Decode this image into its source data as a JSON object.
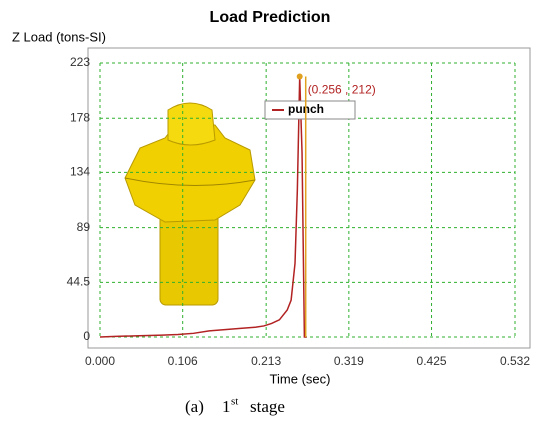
{
  "chart_data": {
    "type": "line",
    "title": "Load Prediction",
    "y_label": "Z Load (tons-SI)",
    "x_label": "Time (sec)",
    "caption": {
      "label": "(a)",
      "number": "1",
      "suffix": "st",
      "text": "stage"
    },
    "x": [
      0,
      0.02,
      0.05,
      0.08,
      0.1,
      0.12,
      0.14,
      0.16,
      0.18,
      0.2,
      0.21,
      0.22,
      0.23,
      0.24,
      0.245,
      0.25,
      0.253,
      0.256,
      0.259,
      0.262,
      0.265
    ],
    "series": [
      {
        "name": "punch",
        "color": "#b22222",
        "values": [
          0,
          0.5,
          1,
          1.5,
          2,
          3,
          5,
          6,
          7,
          8,
          9,
          11,
          14,
          22,
          30,
          60,
          120,
          212,
          150,
          0,
          0
        ]
      }
    ],
    "annotation": {
      "text": "(0.256 , 212)",
      "x": 0.256,
      "y": 212,
      "color": "#e0a020"
    },
    "xlim": [
      0,
      0.532
    ],
    "ylim": [
      0,
      223
    ],
    "xticks": [
      {
        "value": 0,
        "label": "0.000"
      },
      0.106,
      0.213,
      0.319,
      0.425,
      0.532
    ],
    "yticks": [
      0,
      44.5,
      89,
      134,
      178,
      223
    ],
    "grid": true
  }
}
